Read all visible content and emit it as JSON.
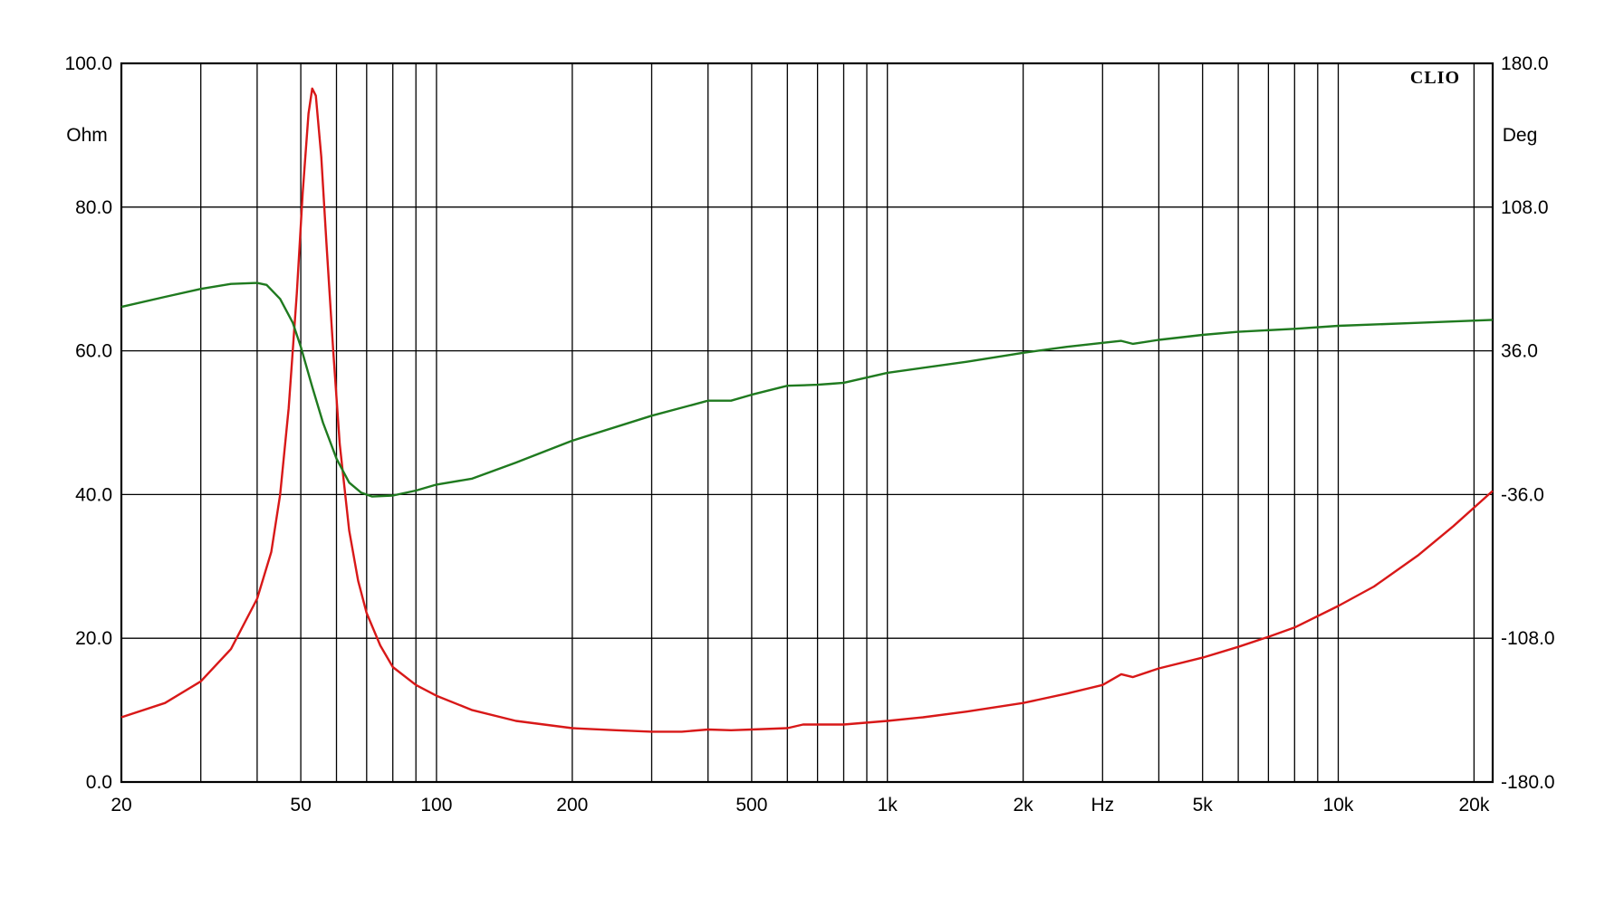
{
  "chart_data": {
    "type": "line",
    "brand": "CLIO",
    "xscale": "log",
    "xlim": [
      20,
      22000
    ],
    "x_tick_labels": [
      {
        "value": 20,
        "label": "20"
      },
      {
        "value": 50,
        "label": "50"
      },
      {
        "value": 100,
        "label": "100"
      },
      {
        "value": 200,
        "label": "200"
      },
      {
        "value": 500,
        "label": "500"
      },
      {
        "value": 1000,
        "label": "1k"
      },
      {
        "value": 2000,
        "label": "2k"
      },
      {
        "value": 3000,
        "label": "Hz"
      },
      {
        "value": 5000,
        "label": "5k"
      },
      {
        "value": 10000,
        "label": "10k"
      },
      {
        "value": 20000,
        "label": "20k"
      }
    ],
    "x_gridlines": [
      20,
      30,
      40,
      50,
      60,
      70,
      80,
      90,
      100,
      200,
      300,
      400,
      500,
      600,
      700,
      800,
      900,
      1000,
      2000,
      3000,
      4000,
      5000,
      6000,
      7000,
      8000,
      9000,
      10000,
      20000
    ],
    "left_axis": {
      "unit": "Ohm",
      "ylim": [
        0,
        100
      ],
      "ticks": [
        {
          "value": 0,
          "label": "0.0"
        },
        {
          "value": 20,
          "label": "20.0"
        },
        {
          "value": 40,
          "label": "40.0"
        },
        {
          "value": 60,
          "label": "60.0"
        },
        {
          "value": 80,
          "label": "80.0"
        },
        {
          "value": 100,
          "label": "100.0"
        }
      ]
    },
    "right_axis": {
      "unit": "Deg",
      "ylim": [
        -180,
        180
      ],
      "ticks": [
        {
          "value": -180,
          "label": "-180.0"
        },
        {
          "value": -108,
          "label": "-108.0"
        },
        {
          "value": -36,
          "label": "-36.0"
        },
        {
          "value": 36,
          "label": "36.0"
        },
        {
          "value": 108,
          "label": "108.0"
        },
        {
          "value": 180,
          "label": "180.0"
        }
      ]
    },
    "grid": true,
    "series": [
      {
        "axis": "left",
        "color": "#d81818",
        "points": [
          [
            20,
            9.0
          ],
          [
            25,
            11.0
          ],
          [
            30,
            14.0
          ],
          [
            35,
            18.5
          ],
          [
            40,
            25.5
          ],
          [
            43,
            32.0
          ],
          [
            45,
            40.0
          ],
          [
            47,
            52.0
          ],
          [
            49,
            68.0
          ],
          [
            50.5,
            82.0
          ],
          [
            52,
            93.0
          ],
          [
            53,
            96.5
          ],
          [
            54,
            95.5
          ],
          [
            55.5,
            87.0
          ],
          [
            57,
            75.0
          ],
          [
            59,
            60.0
          ],
          [
            61,
            47.0
          ],
          [
            64,
            35.0
          ],
          [
            67,
            28.0
          ],
          [
            70,
            23.5
          ],
          [
            75,
            19.0
          ],
          [
            80,
            16.0
          ],
          [
            90,
            13.5
          ],
          [
            100,
            12.0
          ],
          [
            120,
            10.0
          ],
          [
            150,
            8.5
          ],
          [
            200,
            7.5
          ],
          [
            250,
            7.2
          ],
          [
            300,
            7.0
          ],
          [
            350,
            7.0
          ],
          [
            400,
            7.3
          ],
          [
            450,
            7.2
          ],
          [
            500,
            7.3
          ],
          [
            600,
            7.5
          ],
          [
            650,
            8.0
          ],
          [
            800,
            8.0
          ],
          [
            1000,
            8.5
          ],
          [
            1200,
            9.0
          ],
          [
            1500,
            9.8
          ],
          [
            2000,
            11.0
          ],
          [
            2500,
            12.3
          ],
          [
            3000,
            13.5
          ],
          [
            3300,
            15.0
          ],
          [
            3500,
            14.6
          ],
          [
            4000,
            15.8
          ],
          [
            5000,
            17.3
          ],
          [
            6000,
            18.8
          ],
          [
            7000,
            20.2
          ],
          [
            8000,
            21.5
          ],
          [
            10000,
            24.5
          ],
          [
            12000,
            27.2
          ],
          [
            15000,
            31.5
          ],
          [
            18000,
            35.6
          ],
          [
            22000,
            40.5
          ]
        ]
      },
      {
        "axis": "right",
        "color": "#1f7a1f",
        "points": [
          [
            20,
            58.0
          ],
          [
            25,
            63.0
          ],
          [
            30,
            67.0
          ],
          [
            35,
            69.5
          ],
          [
            40,
            70.0
          ],
          [
            42,
            69.0
          ],
          [
            45,
            62.0
          ],
          [
            48,
            50.0
          ],
          [
            50,
            38.0
          ],
          [
            53,
            18.0
          ],
          [
            56,
            0.0
          ],
          [
            60,
            -18.0
          ],
          [
            64,
            -30.0
          ],
          [
            68,
            -35.0
          ],
          [
            72,
            -37.0
          ],
          [
            80,
            -36.5
          ],
          [
            90,
            -34.0
          ],
          [
            100,
            -31.0
          ],
          [
            120,
            -28.0
          ],
          [
            150,
            -20.0
          ],
          [
            200,
            -9.0
          ],
          [
            300,
            3.5
          ],
          [
            400,
            11.0
          ],
          [
            450,
            11.0
          ],
          [
            500,
            14.0
          ],
          [
            600,
            18.5
          ],
          [
            700,
            19.0
          ],
          [
            750,
            19.5
          ],
          [
            800,
            20.0
          ],
          [
            1000,
            25.0
          ],
          [
            1500,
            30.5
          ],
          [
            2000,
            35.0
          ],
          [
            2500,
            38.0
          ],
          [
            3000,
            40.0
          ],
          [
            3300,
            41.0
          ],
          [
            3500,
            39.5
          ],
          [
            4000,
            41.5
          ],
          [
            5000,
            44.0
          ],
          [
            6000,
            45.5
          ],
          [
            8000,
            47.0
          ],
          [
            10000,
            48.5
          ],
          [
            15000,
            50.0
          ],
          [
            22000,
            51.5
          ]
        ]
      }
    ]
  }
}
